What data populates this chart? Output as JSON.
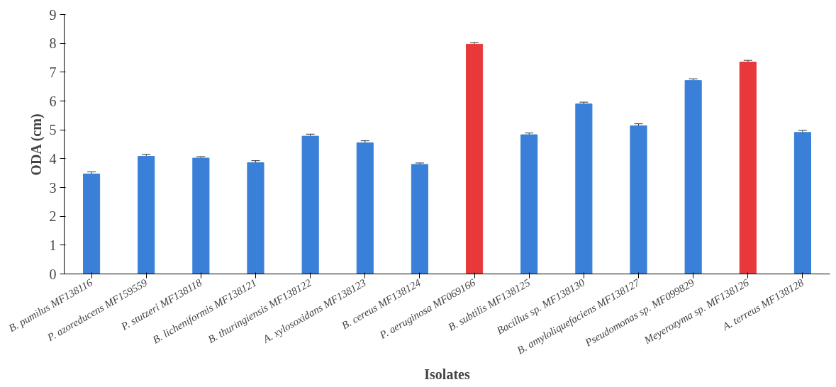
{
  "chart_data": {
    "type": "bar",
    "xlabel": "Isolates",
    "ylabel": "ODA (cm)",
    "categories": [
      "B. pumilus MF138116",
      "P. azoreducens MF159559",
      "P. stutzeri MF138118",
      "B. licheniformis MF138121",
      "B. thuringiensis MF138122",
      "A. xylosoxidans MF138123",
      "B. cereus MF138124",
      "P. aeruginosa MF069166",
      "B. subtilis MF138125",
      "Bacillus sp. MF138130",
      "B. amyloliquefaciens MF138127",
      "Pseudomonas sp. MF099829",
      "Meyerozyma sp. MF138126",
      "A. terreus MF138128"
    ],
    "values": [
      3.47,
      4.08,
      4.02,
      3.86,
      4.78,
      4.55,
      3.8,
      7.97,
      4.83,
      5.9,
      5.14,
      6.71,
      7.35,
      4.91
    ],
    "errors": [
      0.07,
      0.07,
      0.05,
      0.07,
      0.07,
      0.07,
      0.05,
      0.06,
      0.06,
      0.06,
      0.07,
      0.06,
      0.06,
      0.07
    ],
    "colors": [
      "#3a80d8",
      "#3a80d8",
      "#3a80d8",
      "#3a80d8",
      "#3a80d8",
      "#3a80d8",
      "#3a80d8",
      "#e8383a",
      "#3a80d8",
      "#3a80d8",
      "#3a80d8",
      "#3a80d8",
      "#e8383a",
      "#3a80d8"
    ],
    "ylim": [
      0,
      9
    ],
    "yticks": [
      0,
      1,
      2,
      3,
      4,
      5,
      6,
      7,
      8,
      9
    ],
    "grid": false
  }
}
